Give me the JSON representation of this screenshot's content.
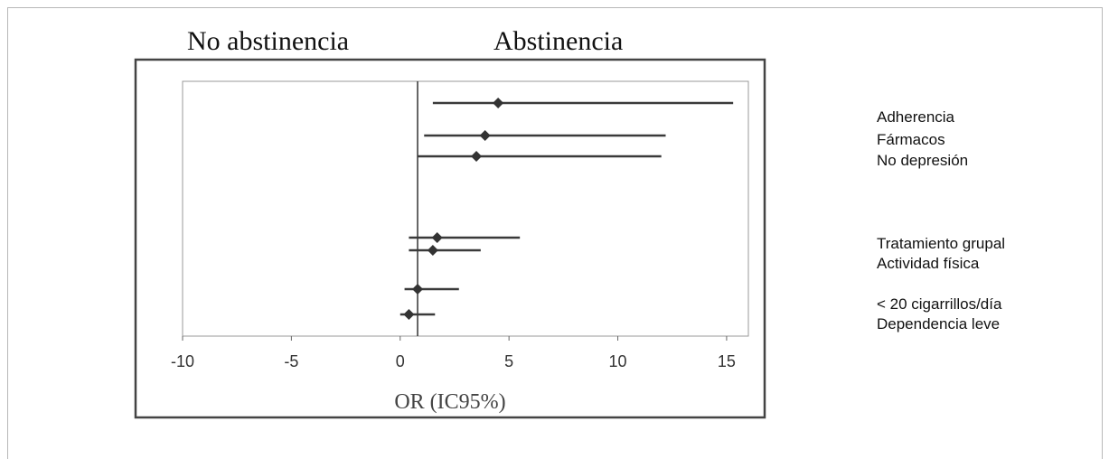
{
  "chart_data": {
    "type": "forest",
    "left_header": "No abstinencia",
    "right_header": "Abstinencia",
    "xlabel": "OR (IC95%)",
    "xlim": [
      -10,
      16
    ],
    "xticks": [
      -10,
      -5,
      0,
      5,
      10,
      15
    ],
    "reference_line": 0.8,
    "grid": false,
    "labels": [
      "Adherencia",
      "Fármacos",
      "No depresión",
      "Tratamiento grupal",
      "Actividad física",
      "< 20 cigarrillos/día",
      "Dependencia leve"
    ],
    "points": [
      {
        "or": 4.5,
        "low": 1.5,
        "high": 15.3
      },
      {
        "or": 3.9,
        "low": 1.1,
        "high": 12.2
      },
      {
        "or": 3.5,
        "low": 0.8,
        "high": 12.0
      },
      {
        "or": 1.7,
        "low": 0.4,
        "high": 5.5
      },
      {
        "or": 1.5,
        "low": 0.4,
        "high": 3.7
      },
      {
        "or": 0.8,
        "low": 0.2,
        "high": 2.7
      },
      {
        "or": 0.4,
        "low": 0.0,
        "high": 1.6
      }
    ]
  }
}
